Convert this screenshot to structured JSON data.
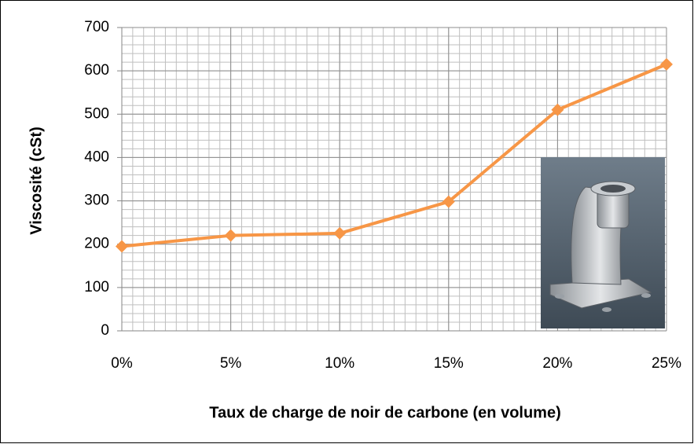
{
  "chart_data": {
    "type": "line",
    "x_label": "Taux de charge de noir de carbone (en volume)",
    "y_label": "Viscosité (cSt)",
    "categories": [
      "0%",
      "5%",
      "10%",
      "15%",
      "20%",
      "25%"
    ],
    "values": [
      195,
      220,
      225,
      298,
      510,
      615
    ],
    "color": "#f79646",
    "ylim": [
      0,
      700
    ],
    "yticks": [
      0,
      100,
      200,
      300,
      400,
      500,
      600,
      700
    ],
    "grid": true
  }
}
